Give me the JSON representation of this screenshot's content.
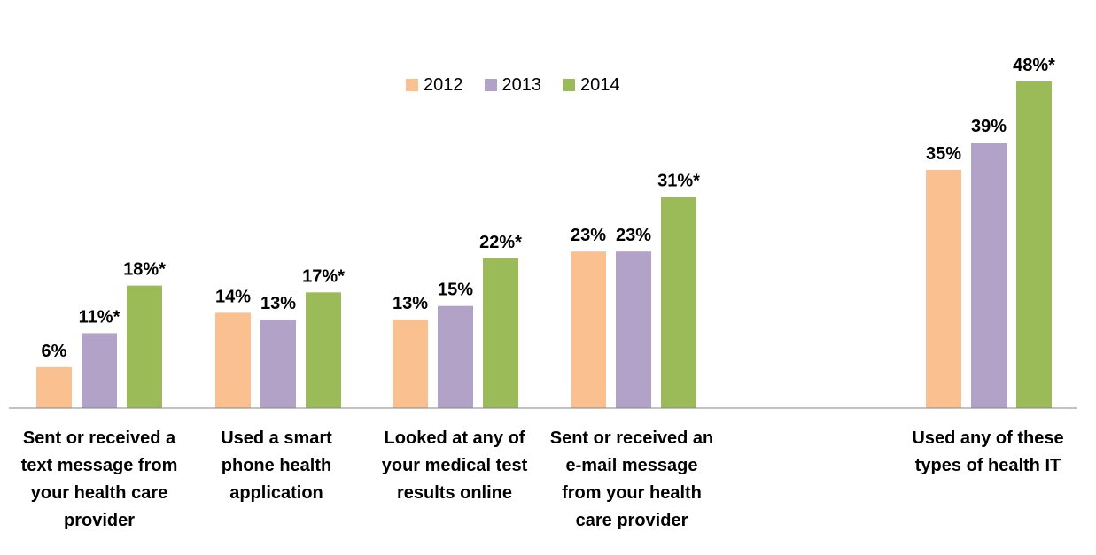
{
  "chart_data": {
    "type": "bar",
    "categories": [
      "Sent or received a\ntext message from\nyour health care\nprovider",
      "Used a smart\nphone health\napplication",
      "Looked at any of\nyour medical test\nresults online",
      "Sent or received an\ne-mail message\nfrom your health\ncare provider",
      "Used any of these\ntypes of health IT"
    ],
    "series": [
      {
        "name": "2012",
        "color": "#FAC090",
        "values": [
          6,
          14,
          13,
          23,
          35
        ],
        "labels": [
          "6%",
          "14%",
          "13%",
          "23%",
          "35%"
        ]
      },
      {
        "name": "2013",
        "color": "#B3A2C7",
        "values": [
          11,
          13,
          15,
          23,
          39
        ],
        "labels": [
          "11%*",
          "13%",
          "15%",
          "23%",
          "39%"
        ]
      },
      {
        "name": "2014",
        "color": "#9BBB59",
        "values": [
          18,
          17,
          22,
          31,
          48
        ],
        "labels": [
          "18%*",
          "17%*",
          "22%*",
          "31%*",
          "48%*"
        ]
      }
    ],
    "ylim": [
      0,
      48
    ],
    "grid": false,
    "legend_position": "top-center"
  }
}
